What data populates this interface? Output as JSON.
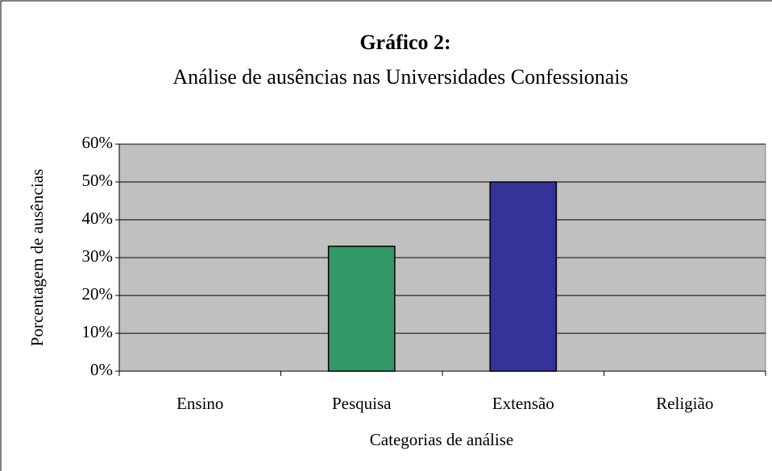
{
  "chart_data": {
    "type": "bar",
    "title": "Gráfico 2:",
    "subtitle": "Análise de ausências nas Universidades Confessionais",
    "x_label": "Categorias de análise",
    "y_label": "Porcentagem de ausências",
    "categories": [
      "Ensino",
      "Pesquisa",
      "Extensão",
      "Religião"
    ],
    "values": [
      0,
      33,
      50,
      0
    ],
    "colors": [
      null,
      "#339966",
      "#333399",
      null
    ],
    "ylim": [
      0,
      60
    ],
    "yticks": [
      {
        "value": 0,
        "label": "0%"
      },
      {
        "value": 10,
        "label": "10%"
      },
      {
        "value": 20,
        "label": "20%"
      },
      {
        "value": 30,
        "label": "30%"
      },
      {
        "value": 40,
        "label": "40%"
      },
      {
        "value": 50,
        "label": "50%"
      },
      {
        "value": 60,
        "label": "60%"
      }
    ],
    "grid": true
  }
}
